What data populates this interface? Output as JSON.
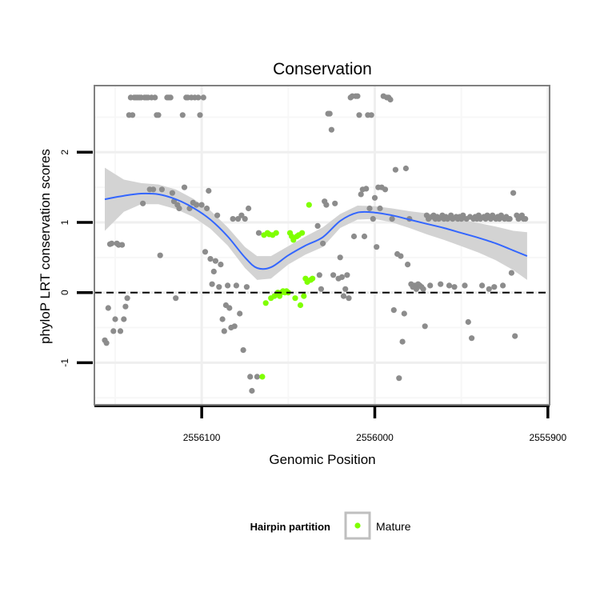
{
  "chart_data": {
    "type": "scatter",
    "title": "Conservation",
    "xlabel": "Genomic Position",
    "ylabel": "phyloP LRT conservation scores",
    "x_reversed": true,
    "xlim": [
      2556162,
      2555899
    ],
    "ylim": [
      -1.6,
      2.95
    ],
    "x_ticks": [
      2556100,
      2556000,
      2555900
    ],
    "x_tick_labels": [
      "2556100",
      "2556000",
      "2555900"
    ],
    "y_ticks": [
      -1,
      0,
      1,
      2
    ],
    "y_tick_labels": [
      "-1",
      "0",
      "1",
      "2"
    ],
    "reference_line_y": 0,
    "grid": true,
    "legend": {
      "title": "Hairpin partition",
      "placement": "bottom",
      "entries": [
        {
          "label": "Mature",
          "color": "#7FFF00"
        }
      ]
    },
    "colors": {
      "other_points": "#8C8C8C",
      "mature_points": "#7FFF00",
      "smooth_line": "#3366FF",
      "confidence_band": "#D3D3D3",
      "panel_border": "#808080"
    },
    "series": [
      {
        "name": "",
        "color": "#8C8C8C",
        "points": [
          [
            2556156,
            -0.68
          ],
          [
            2556155,
            -0.72
          ],
          [
            2556154,
            -0.22
          ],
          [
            2556153,
            0.69
          ],
          [
            2556152,
            0.7
          ],
          [
            2556151,
            -0.55
          ],
          [
            2556150,
            -0.38
          ],
          [
            2556149,
            0.7
          ],
          [
            2556148,
            0.68
          ],
          [
            2556147,
            -0.55
          ],
          [
            2556146,
            0.68
          ],
          [
            2556145,
            -0.38
          ],
          [
            2556144,
            -0.2
          ],
          [
            2556143,
            -0.08
          ],
          [
            2556142,
            2.53
          ],
          [
            2556141,
            2.78
          ],
          [
            2556140,
            2.53
          ],
          [
            2556139,
            2.78
          ],
          [
            2556138,
            2.78
          ],
          [
            2556137,
            2.78
          ],
          [
            2556136,
            2.78
          ],
          [
            2556135,
            2.78
          ],
          [
            2556134,
            1.27
          ],
          [
            2556133,
            2.78
          ],
          [
            2556132,
            2.78
          ],
          [
            2556131,
            2.78
          ],
          [
            2556130,
            1.47
          ],
          [
            2556129,
            2.78
          ],
          [
            2556128,
            1.47
          ],
          [
            2556127,
            2.78
          ],
          [
            2556126,
            2.53
          ],
          [
            2556125,
            2.53
          ],
          [
            2556124,
            0.53
          ],
          [
            2556123,
            1.47
          ],
          [
            2556120,
            2.78
          ],
          [
            2556119,
            2.78
          ],
          [
            2556118,
            2.78
          ],
          [
            2556117,
            1.42
          ],
          [
            2556116,
            1.3
          ],
          [
            2556115,
            -0.08
          ],
          [
            2556114,
            1.25
          ],
          [
            2556113,
            1.2
          ],
          [
            2556111,
            2.53
          ],
          [
            2556110,
            1.5
          ],
          [
            2556109,
            2.78
          ],
          [
            2556108,
            2.78
          ],
          [
            2556107,
            1.2
          ],
          [
            2556106,
            2.78
          ],
          [
            2556105,
            1.28
          ],
          [
            2556104,
            2.78
          ],
          [
            2556103,
            1.25
          ],
          [
            2556102,
            2.78
          ],
          [
            2556101,
            2.53
          ],
          [
            2556100,
            1.25
          ],
          [
            2556099,
            2.78
          ],
          [
            2556098,
            0.58
          ],
          [
            2556097,
            1.2
          ],
          [
            2556096,
            1.45
          ],
          [
            2556095,
            0.48
          ],
          [
            2556094,
            0.12
          ],
          [
            2556093,
            0.3
          ],
          [
            2556092,
            0.45
          ],
          [
            2556091,
            1.1
          ],
          [
            2556090,
            0.08
          ],
          [
            2556089,
            0.4
          ],
          [
            2556088,
            -0.38
          ],
          [
            2556087,
            -0.55
          ],
          [
            2556086,
            -0.18
          ],
          [
            2556085,
            0.1
          ],
          [
            2556084,
            -0.22
          ],
          [
            2556083,
            -0.5
          ],
          [
            2556082,
            1.05
          ],
          [
            2556081,
            -0.48
          ],
          [
            2556080,
            0.1
          ],
          [
            2556079,
            1.05
          ],
          [
            2556078,
            -0.3
          ],
          [
            2556077,
            1.1
          ],
          [
            2556076,
            -0.82
          ],
          [
            2556075,
            1.05
          ],
          [
            2556074,
            0.08
          ],
          [
            2556073,
            1.2
          ],
          [
            2556072,
            -1.2
          ],
          [
            2556071,
            -1.4
          ],
          [
            2556068,
            -1.2
          ],
          [
            2556067,
            0.85
          ],
          [
            2556033,
            0.95
          ],
          [
            2556032,
            0.25
          ],
          [
            2556031,
            0.05
          ],
          [
            2556030,
            0.7
          ],
          [
            2556029,
            1.3
          ],
          [
            2556028,
            1.25
          ],
          [
            2556027,
            2.55
          ],
          [
            2556026,
            2.55
          ],
          [
            2556025,
            2.32
          ],
          [
            2556024,
            0.25
          ],
          [
            2556023,
            1.27
          ],
          [
            2556021,
            0.2
          ],
          [
            2556020,
            0.5
          ],
          [
            2556019,
            0.22
          ],
          [
            2556018,
            -0.05
          ],
          [
            2556017,
            0.05
          ],
          [
            2556016,
            0.25
          ],
          [
            2556015,
            -0.08
          ],
          [
            2556014,
            2.78
          ],
          [
            2556013,
            2.8
          ],
          [
            2556012,
            0.8
          ],
          [
            2556011,
            2.8
          ],
          [
            2556010,
            2.8
          ],
          [
            2556009,
            2.53
          ],
          [
            2556008,
            1.4
          ],
          [
            2556007,
            1.47
          ],
          [
            2556006,
            0.8
          ],
          [
            2556005,
            1.48
          ],
          [
            2556004,
            2.53
          ],
          [
            2556003,
            1.2
          ],
          [
            2556002,
            2.53
          ],
          [
            2556001,
            1.05
          ],
          [
            2556000,
            1.35
          ],
          [
            2555999,
            0.65
          ],
          [
            2555998,
            1.5
          ],
          [
            2555997,
            1.2
          ],
          [
            2555996,
            1.5
          ],
          [
            2555995,
            2.8
          ],
          [
            2555994,
            1.47
          ],
          [
            2555993,
            2.78
          ],
          [
            2555992,
            2.78
          ],
          [
            2555991,
            2.75
          ],
          [
            2555990,
            1.05
          ],
          [
            2555989,
            -0.25
          ],
          [
            2555988,
            1.75
          ],
          [
            2555987,
            0.55
          ],
          [
            2555986,
            -1.22
          ],
          [
            2555985,
            0.52
          ],
          [
            2555984,
            -0.7
          ],
          [
            2555983,
            -0.3
          ],
          [
            2555982,
            1.77
          ],
          [
            2555981,
            0.4
          ],
          [
            2555980,
            1.05
          ],
          [
            2555979,
            0.12
          ],
          [
            2555978,
            0.08
          ],
          [
            2555977,
            0.1
          ],
          [
            2555976,
            0.05
          ],
          [
            2555975,
            0.12
          ],
          [
            2555974,
            0.1
          ],
          [
            2555973,
            0.08
          ],
          [
            2555972,
            0.05
          ],
          [
            2555971,
            -0.48
          ],
          [
            2555970,
            1.1
          ],
          [
            2555969,
            1.05
          ],
          [
            2555968,
            0.1
          ],
          [
            2555967,
            1.08
          ],
          [
            2555966,
            1.1
          ],
          [
            2555965,
            1.05
          ],
          [
            2555964,
            1.08
          ],
          [
            2555963,
            1.05
          ],
          [
            2555962,
            0.12
          ],
          [
            2555961,
            1.1
          ],
          [
            2555960,
            1.05
          ],
          [
            2555959,
            1.08
          ],
          [
            2555958,
            1.05
          ],
          [
            2555957,
            0.1
          ],
          [
            2555956,
            1.1
          ],
          [
            2555955,
            1.05
          ],
          [
            2555954,
            0.08
          ],
          [
            2555953,
            1.08
          ],
          [
            2555952,
            1.05
          ],
          [
            2555951,
            1.08
          ],
          [
            2555950,
            1.05
          ],
          [
            2555949,
            1.1
          ],
          [
            2555948,
            0.1
          ],
          [
            2555947,
            1.05
          ],
          [
            2555946,
            -0.42
          ],
          [
            2555945,
            1.08
          ],
          [
            2555944,
            -0.65
          ],
          [
            2555943,
            1.05
          ],
          [
            2555942,
            1.08
          ],
          [
            2555941,
            1.05
          ],
          [
            2555940,
            1.1
          ],
          [
            2555939,
            1.05
          ],
          [
            2555938,
            0.1
          ],
          [
            2555937,
            1.08
          ],
          [
            2555936,
            1.05
          ],
          [
            2555935,
            1.1
          ],
          [
            2555934,
            0.05
          ],
          [
            2555933,
            1.05
          ],
          [
            2555932,
            1.1
          ],
          [
            2555931,
            0.08
          ],
          [
            2555930,
            1.05
          ],
          [
            2555929,
            1.08
          ],
          [
            2555928,
            1.05
          ],
          [
            2555927,
            1.1
          ],
          [
            2555926,
            0.1
          ],
          [
            2555925,
            1.05
          ],
          [
            2555924,
            1.08
          ],
          [
            2555923,
            1.05
          ],
          [
            2555922,
            1.05
          ],
          [
            2555921,
            0.28
          ],
          [
            2555920,
            1.42
          ],
          [
            2555919,
            -0.62
          ],
          [
            2555918,
            1.1
          ],
          [
            2555917,
            1.05
          ],
          [
            2555916,
            1.08
          ],
          [
            2555915,
            1.1
          ],
          [
            2555914,
            1.05
          ],
          [
            2555913,
            1.05
          ]
        ]
      },
      {
        "name": "Mature",
        "color": "#7FFF00",
        "points": [
          [
            2556065,
            -1.2
          ],
          [
            2556064,
            0.82
          ],
          [
            2556063,
            -0.15
          ],
          [
            2556062,
            0.85
          ],
          [
            2556061,
            0.83
          ],
          [
            2556060,
            -0.08
          ],
          [
            2556059,
            0.82
          ],
          [
            2556058,
            -0.05
          ],
          [
            2556057,
            0.85
          ],
          [
            2556056,
            0.0
          ],
          [
            2556055,
            -0.05
          ],
          [
            2556054,
            0.0
          ],
          [
            2556053,
            0.02
          ],
          [
            2556052,
            0.0
          ],
          [
            2556051,
            0.02
          ],
          [
            2556050,
            0.0
          ],
          [
            2556049,
            0.85
          ],
          [
            2556048,
            0.8
          ],
          [
            2556047,
            0.75
          ],
          [
            2556046,
            -0.08
          ],
          [
            2556045,
            0.8
          ],
          [
            2556044,
            0.82
          ],
          [
            2556043,
            -0.18
          ],
          [
            2556042,
            0.85
          ],
          [
            2556041,
            -0.05
          ],
          [
            2556040,
            0.2
          ],
          [
            2556039,
            0.15
          ],
          [
            2556038,
            1.25
          ],
          [
            2556037,
            0.18
          ],
          [
            2556036,
            0.2
          ]
        ]
      }
    ],
    "smooth": {
      "x": [
        2556156,
        2556145,
        2556135,
        2556125,
        2556115,
        2556105,
        2556095,
        2556085,
        2556075,
        2556068,
        2556060,
        2556050,
        2556040,
        2556030,
        2556020,
        2556010,
        2556000,
        2555990,
        2555980,
        2555970,
        2555960,
        2555950,
        2555940,
        2555930,
        2555920,
        2555912
      ],
      "y": [
        1.33,
        1.38,
        1.41,
        1.4,
        1.33,
        1.21,
        1.04,
        0.8,
        0.5,
        0.35,
        0.36,
        0.53,
        0.67,
        0.79,
        1.02,
        1.14,
        1.14,
        1.1,
        1.04,
        0.98,
        0.92,
        0.85,
        0.78,
        0.7,
        0.6,
        0.52
      ],
      "lower": [
        0.88,
        1.15,
        1.26,
        1.26,
        1.19,
        1.08,
        0.91,
        0.67,
        0.35,
        0.18,
        0.2,
        0.4,
        0.54,
        0.65,
        0.92,
        1.04,
        1.05,
        1.0,
        0.92,
        0.83,
        0.75,
        0.66,
        0.57,
        0.46,
        0.32,
        0.18
      ],
      "upper": [
        1.78,
        1.61,
        1.56,
        1.54,
        1.47,
        1.34,
        1.17,
        0.93,
        0.65,
        0.52,
        0.52,
        0.66,
        0.8,
        0.93,
        1.12,
        1.24,
        1.23,
        1.2,
        1.16,
        1.13,
        1.09,
        1.04,
        0.99,
        0.94,
        0.88,
        0.86
      ]
    }
  }
}
